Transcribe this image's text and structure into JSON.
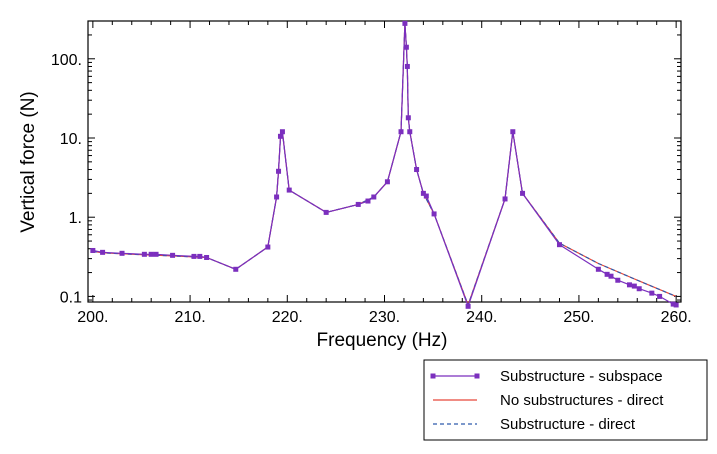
{
  "chart_data": {
    "type": "line",
    "title": "",
    "xlabel": "Frequency (Hz)",
    "ylabel": "Vertical force (N)",
    "xscale": "linear",
    "yscale": "log",
    "xlim": [
      199.5,
      260.5
    ],
    "ylim": [
      0.085,
      300
    ],
    "grid": false,
    "legend_position": "bottom-right-outside",
    "x_ticks": [
      200,
      210,
      220,
      230,
      240,
      250,
      260
    ],
    "x_tick_labels": [
      "200.",
      "210.",
      "220.",
      "230.",
      "240.",
      "250.",
      "260."
    ],
    "y_ticks": [
      0.1,
      1,
      10,
      100
    ],
    "y_tick_labels": [
      "0.1",
      "1.",
      "10.",
      "100."
    ],
    "series": [
      {
        "name": "Substructure - subspace",
        "color": "#7B2FBE",
        "style": "solid-with-square-markers",
        "x": [
          200,
          201,
          203,
          205.3,
          206,
          206.5,
          208.2,
          210.4,
          211,
          211.7,
          214.7,
          218,
          218.9,
          219.1,
          219.3,
          219.5,
          220.2,
          224,
          227.3,
          228.3,
          228.9,
          230.3,
          231.7,
          232.1,
          232.25,
          232.35,
          232.45,
          232.6,
          233.3,
          234,
          234.3,
          235.1,
          238.6,
          242.4,
          243.2,
          244.2,
          248,
          252,
          252.9,
          253.3,
          254,
          255.2,
          255.7,
          256.2,
          257.5,
          258.3,
          259.7,
          260
        ],
        "y": [
          0.38,
          0.36,
          0.35,
          0.34,
          0.34,
          0.34,
          0.33,
          0.32,
          0.32,
          0.31,
          0.22,
          0.42,
          1.8,
          3.8,
          10.5,
          12,
          2.2,
          1.15,
          1.45,
          1.6,
          1.8,
          2.8,
          12,
          280,
          140,
          80,
          18,
          12,
          4,
          2,
          1.85,
          1.1,
          0.075,
          1.7,
          12,
          2,
          0.45,
          0.22,
          0.19,
          0.18,
          0.16,
          0.14,
          0.135,
          0.125,
          0.11,
          0.1,
          0.08,
          0.078
        ]
      },
      {
        "name": "No substructures - direct",
        "color": "#E8483A",
        "style": "solid",
        "x": [
          200,
          201,
          203,
          205.3,
          208.2,
          211.7,
          214.7,
          218,
          218.9,
          219.1,
          219.3,
          219.5,
          220.2,
          224,
          227.3,
          228.9,
          230.3,
          231.7,
          232.1,
          232.25,
          232.35,
          232.45,
          232.6,
          233.3,
          234,
          235.1,
          238.6,
          242.4,
          243.2,
          244.2,
          248,
          252,
          256,
          260
        ],
        "y": [
          0.37,
          0.355,
          0.345,
          0.335,
          0.325,
          0.31,
          0.22,
          0.42,
          1.8,
          3.8,
          10.5,
          12,
          2.2,
          1.15,
          1.45,
          1.8,
          2.8,
          12,
          280,
          140,
          80,
          18,
          12,
          4,
          2,
          1.1,
          0.078,
          1.7,
          12,
          2,
          0.47,
          0.26,
          0.16,
          0.1
        ]
      },
      {
        "name": "Substructure - direct",
        "color": "#2E5AAC",
        "style": "dashed",
        "x": [
          200,
          201,
          203,
          205.3,
          208.2,
          211.7,
          214.7,
          218,
          218.9,
          219.1,
          219.3,
          219.5,
          220.2,
          224,
          227.3,
          228.9,
          230.3,
          231.7,
          232.1,
          232.25,
          232.35,
          232.45,
          232.6,
          233.3,
          234,
          235.1,
          238.6,
          242.4,
          243.2,
          244.2,
          248,
          252,
          256,
          260
        ],
        "y": [
          0.37,
          0.355,
          0.345,
          0.335,
          0.325,
          0.31,
          0.22,
          0.42,
          1.8,
          3.8,
          10.5,
          12,
          2.2,
          1.15,
          1.45,
          1.8,
          2.8,
          12,
          280,
          140,
          80,
          18,
          12,
          4,
          2,
          1.1,
          0.078,
          1.7,
          12,
          2,
          0.47,
          0.26,
          0.16,
          0.1
        ]
      }
    ]
  }
}
